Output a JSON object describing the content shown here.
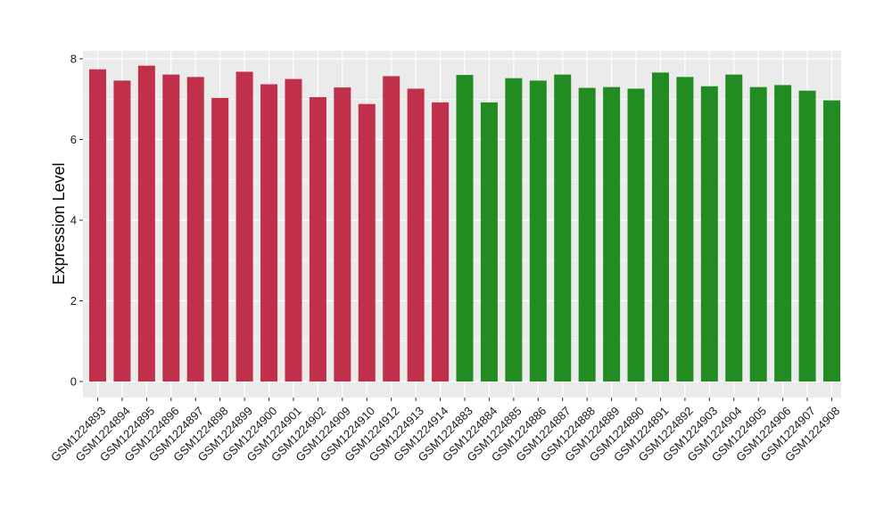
{
  "chart_data": {
    "type": "bar",
    "title": "",
    "xlabel": "",
    "ylabel": "Expression Level",
    "ylim": [
      0,
      8.3
    ],
    "yticks": [
      0,
      2,
      4,
      6,
      8
    ],
    "grid": true,
    "legend": "none",
    "colors": {
      "group1": "#C0304A",
      "group2": "#228B22",
      "panel": "#EBEBEB",
      "gridline": "#FFFFFF"
    },
    "categories": [
      "GSM1224893",
      "GSM1224894",
      "GSM1224895",
      "GSM1224896",
      "GSM1224897",
      "GSM1224898",
      "GSM1224899",
      "GSM1224900",
      "GSM1224901",
      "GSM1224902",
      "GSM1224909",
      "GSM1224910",
      "GSM1224912",
      "GSM1224913",
      "GSM1224914",
      "GSM1224883",
      "GSM1224884",
      "GSM1224885",
      "GSM1224886",
      "GSM1224887",
      "GSM1224888",
      "GSM1224889",
      "GSM1224890",
      "GSM1224891",
      "GSM1224892",
      "GSM1224903",
      "GSM1224904",
      "GSM1224905",
      "GSM1224906",
      "GSM1224907",
      "GSM1224908"
    ],
    "values": [
      7.74,
      7.46,
      7.83,
      7.61,
      7.55,
      7.03,
      7.68,
      7.37,
      7.5,
      7.05,
      7.29,
      6.88,
      7.57,
      7.26,
      6.92,
      7.6,
      6.92,
      7.52,
      7.46,
      7.61,
      7.28,
      7.3,
      7.26,
      7.66,
      7.55,
      7.32,
      7.61,
      7.3,
      7.35,
      7.21,
      6.97
    ],
    "groups": [
      "group1",
      "group1",
      "group1",
      "group1",
      "group1",
      "group1",
      "group1",
      "group1",
      "group1",
      "group1",
      "group1",
      "group1",
      "group1",
      "group1",
      "group1",
      "group2",
      "group2",
      "group2",
      "group2",
      "group2",
      "group2",
      "group2",
      "group2",
      "group2",
      "group2",
      "group2",
      "group2",
      "group2",
      "group2",
      "group2",
      "group2"
    ]
  }
}
